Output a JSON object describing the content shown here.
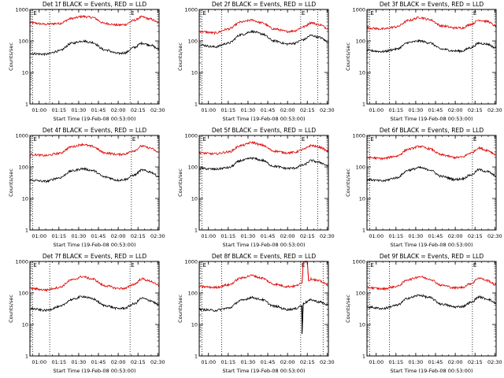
{
  "figure": {
    "y_axis_label": "Counts/sec",
    "x_axis_label": "Start Time (19-Feb-08 00:53:00)"
  },
  "colors": {
    "events": "#000000",
    "lld": "#e00000",
    "background": "#ffffff"
  },
  "chart_data": [
    {
      "type": "line",
      "title": "Det 1f BLACK = Events, RED = LLD",
      "xlabel": "Start Time (19-Feb-08 00:53:00)",
      "ylabel": "Counts/sec",
      "yscale": "log",
      "ylim": [
        1,
        1000
      ],
      "xlim": [
        "00:53",
        "02:31"
      ],
      "xticks": [
        "01:00",
        "01:15",
        "01:30",
        "01:45",
        "02:00",
        "02:15",
        "02:30"
      ],
      "yticks": [
        "1",
        "10",
        "100",
        "1000"
      ],
      "vlines": [
        {
          "x": "00:55",
          "label": "E"
        },
        {
          "x": "01:08",
          "label": ""
        },
        {
          "x": "02:09",
          "label": "E"
        }
      ],
      "series": [
        {
          "name": "LLD",
          "color": "#e00000",
          "x": [
            "00:53",
            "01:05",
            "01:15",
            "01:25",
            "01:33",
            "01:40",
            "01:50",
            "02:00",
            "02:05",
            "02:12",
            "02:18",
            "02:24",
            "02:31"
          ],
          "y": [
            380,
            340,
            360,
            520,
            600,
            560,
            360,
            320,
            330,
            450,
            580,
            500,
            380
          ]
        },
        {
          "name": "Events",
          "color": "#000000",
          "x": [
            "00:53",
            "01:05",
            "01:15",
            "01:25",
            "01:33",
            "01:40",
            "01:50",
            "02:00",
            "02:05",
            "02:12",
            "02:18",
            "02:24",
            "02:31"
          ],
          "y": [
            40,
            38,
            48,
            85,
            100,
            90,
            52,
            40,
            42,
            62,
            85,
            75,
            55
          ]
        }
      ]
    },
    {
      "type": "line",
      "title": "Det 2f BLACK = Events, RED = LLD",
      "xlabel": "Start Time (19-Feb-08 00:53:00)",
      "ylabel": "Counts/sec",
      "yscale": "log",
      "ylim": [
        1,
        1000
      ],
      "xlim": [
        "00:53",
        "02:31"
      ],
      "xticks": [
        "01:00",
        "01:15",
        "01:30",
        "01:45",
        "02:00",
        "02:15",
        "02:30"
      ],
      "yticks": [
        "1",
        "10",
        "100",
        "1000"
      ],
      "vlines": [
        {
          "x": "00:55",
          "label": "E"
        },
        {
          "x": "01:10",
          "label": ""
        },
        {
          "x": "02:10",
          "label": "E"
        },
        {
          "x": "02:23",
          "label": ""
        }
      ],
      "series": [
        {
          "name": "LLD",
          "color": "#e00000",
          "x": [
            "00:53",
            "01:05",
            "01:15",
            "01:25",
            "01:33",
            "01:40",
            "01:50",
            "02:00",
            "02:05",
            "02:12",
            "02:18",
            "02:24",
            "02:31"
          ],
          "y": [
            200,
            180,
            240,
            400,
            460,
            380,
            240,
            200,
            210,
            280,
            380,
            330,
            250
          ]
        },
        {
          "name": "Events",
          "color": "#000000",
          "x": [
            "00:53",
            "01:05",
            "01:15",
            "01:25",
            "01:33",
            "01:40",
            "01:50",
            "02:00",
            "02:05",
            "02:12",
            "02:18",
            "02:24",
            "02:31"
          ],
          "y": [
            75,
            65,
            85,
            160,
            200,
            170,
            100,
            80,
            85,
            110,
            150,
            130,
            95
          ]
        }
      ]
    },
    {
      "type": "line",
      "title": "Det 3f BLACK = Events, RED = LLD",
      "xlabel": "Start Time (19-Feb-08 00:53:00)",
      "ylabel": "Counts/sec",
      "yscale": "log",
      "ylim": [
        1,
        1000
      ],
      "xlim": [
        "00:53",
        "02:31"
      ],
      "xticks": [
        "01:00",
        "01:15",
        "01:30",
        "01:45",
        "02:00",
        "02:15",
        "02:30"
      ],
      "yticks": [
        "1",
        "10",
        "100",
        "1000"
      ],
      "vlines": [
        {
          "x": "00:55",
          "label": "E"
        },
        {
          "x": "01:10",
          "label": ""
        },
        {
          "x": "02:13",
          "label": "E"
        }
      ],
      "series": [
        {
          "name": "LLD",
          "color": "#e00000",
          "x": [
            "00:53",
            "01:05",
            "01:15",
            "01:25",
            "01:33",
            "01:40",
            "01:50",
            "02:00",
            "02:05",
            "02:12",
            "02:18",
            "02:24",
            "02:31"
          ],
          "y": [
            260,
            240,
            280,
            450,
            560,
            480,
            300,
            260,
            260,
            340,
            460,
            420,
            300
          ]
        },
        {
          "name": "Events",
          "color": "#000000",
          "x": [
            "00:53",
            "01:05",
            "01:15",
            "01:25",
            "01:33",
            "01:40",
            "01:50",
            "02:00",
            "02:05",
            "02:12",
            "02:18",
            "02:24",
            "02:31"
          ],
          "y": [
            50,
            46,
            55,
            90,
            100,
            88,
            55,
            48,
            48,
            62,
            85,
            80,
            60
          ]
        }
      ]
    },
    {
      "type": "line",
      "title": "Det 4f BLACK = Events, RED = LLD",
      "xlabel": "Start Time (19-Feb-08 00:53:00)",
      "ylabel": "Counts/sec",
      "yscale": "log",
      "ylim": [
        1,
        1000
      ],
      "xlim": [
        "00:53",
        "02:31"
      ],
      "xticks": [
        "01:00",
        "01:15",
        "01:30",
        "01:45",
        "02:00",
        "02:15",
        "02:30"
      ],
      "yticks": [
        "1",
        "10",
        "100",
        "1000"
      ],
      "vlines": [
        {
          "x": "00:55",
          "label": "E"
        },
        {
          "x": "02:10",
          "label": "E"
        }
      ],
      "series": [
        {
          "name": "LLD",
          "color": "#e00000",
          "x": [
            "00:53",
            "01:05",
            "01:15",
            "01:25",
            "01:33",
            "01:40",
            "01:50",
            "02:00",
            "02:05",
            "02:12",
            "02:18",
            "02:24",
            "02:31"
          ],
          "y": [
            250,
            230,
            270,
            440,
            520,
            450,
            280,
            250,
            260,
            330,
            460,
            400,
            290
          ]
        },
        {
          "name": "Events",
          "color": "#000000",
          "x": [
            "00:53",
            "01:05",
            "01:15",
            "01:25",
            "01:33",
            "01:40",
            "01:50",
            "02:00",
            "02:05",
            "02:12",
            "02:18",
            "02:24",
            "02:31"
          ],
          "y": [
            38,
            35,
            45,
            75,
            88,
            78,
            48,
            38,
            40,
            55,
            80,
            70,
            50
          ]
        }
      ]
    },
    {
      "type": "line",
      "title": "Det 5f BLACK = Events, RED = LLD",
      "xlabel": "Start Time (19-Feb-08 00:53:00)",
      "ylabel": "Counts/sec",
      "yscale": "log",
      "ylim": [
        1,
        1000
      ],
      "xlim": [
        "00:53",
        "02:31"
      ],
      "xticks": [
        "01:00",
        "01:15",
        "01:30",
        "01:45",
        "02:00",
        "02:15",
        "02:30"
      ],
      "yticks": [
        "1",
        "10",
        "100",
        "1000"
      ],
      "vlines": [
        {
          "x": "00:55",
          "label": "E"
        },
        {
          "x": "02:10",
          "label": "E"
        },
        {
          "x": "02:23",
          "label": ""
        }
      ],
      "series": [
        {
          "name": "LLD",
          "color": "#e00000",
          "x": [
            "00:53",
            "01:05",
            "01:15",
            "01:25",
            "01:33",
            "01:40",
            "01:50",
            "02:00",
            "02:05",
            "02:12",
            "02:18",
            "02:24",
            "02:31"
          ],
          "y": [
            280,
            260,
            300,
            480,
            600,
            500,
            320,
            280,
            290,
            360,
            480,
            430,
            320
          ]
        },
        {
          "name": "Events",
          "color": "#000000",
          "x": [
            "00:53",
            "01:05",
            "01:15",
            "01:25",
            "01:33",
            "01:40",
            "01:50",
            "02:00",
            "02:05",
            "02:12",
            "02:18",
            "02:24",
            "02:31"
          ],
          "y": [
            90,
            85,
            95,
            160,
            190,
            165,
            105,
            90,
            92,
            115,
            160,
            140,
            110
          ]
        }
      ]
    },
    {
      "type": "line",
      "title": "Det 6f BLACK = Events, RED = LLD",
      "xlabel": "Start Time (19-Feb-08 00:53:00)",
      "ylabel": "Counts/sec",
      "yscale": "log",
      "ylim": [
        1,
        1000
      ],
      "xlim": [
        "00:53",
        "02:31"
      ],
      "xticks": [
        "01:00",
        "01:15",
        "01:30",
        "01:45",
        "02:00",
        "02:15",
        "02:30"
      ],
      "yticks": [
        "1",
        "10",
        "100",
        "1000"
      ],
      "vlines": [
        {
          "x": "00:55",
          "label": "E"
        },
        {
          "x": "02:13",
          "label": "E"
        }
      ],
      "series": [
        {
          "name": "LLD",
          "color": "#e00000",
          "x": [
            "00:53",
            "01:05",
            "01:15",
            "01:25",
            "01:33",
            "01:40",
            "01:50",
            "02:00",
            "02:05",
            "02:12",
            "02:18",
            "02:24",
            "02:31"
          ],
          "y": [
            200,
            185,
            220,
            370,
            450,
            380,
            240,
            200,
            205,
            280,
            400,
            340,
            250
          ]
        },
        {
          "name": "Events",
          "color": "#000000",
          "x": [
            "00:53",
            "01:05",
            "01:15",
            "01:25",
            "01:33",
            "01:40",
            "01:50",
            "02:00",
            "02:05",
            "02:12",
            "02:18",
            "02:24",
            "02:31"
          ],
          "y": [
            40,
            36,
            45,
            80,
            95,
            82,
            50,
            40,
            42,
            56,
            82,
            72,
            52
          ]
        }
      ]
    },
    {
      "type": "line",
      "title": "Det 7f BLACK = Events, RED = LLD",
      "xlabel": "Start Time (19-Feb-08 00:53:00)",
      "ylabel": "Counts/sec",
      "yscale": "log",
      "ylim": [
        1,
        1000
      ],
      "xlim": [
        "00:53",
        "02:31"
      ],
      "xticks": [
        "01:00",
        "01:15",
        "01:30",
        "01:45",
        "02:00",
        "02:15",
        "02:30"
      ],
      "yticks": [
        "1",
        "10",
        "100",
        "1000"
      ],
      "vlines": [
        {
          "x": "00:55",
          "label": "E"
        },
        {
          "x": "01:08",
          "label": ""
        },
        {
          "x": "02:09",
          "label": "E"
        }
      ],
      "series": [
        {
          "name": "LLD",
          "color": "#e00000",
          "x": [
            "00:53",
            "01:05",
            "01:15",
            "01:25",
            "01:33",
            "01:40",
            "01:50",
            "02:00",
            "02:05",
            "02:12",
            "02:18",
            "02:24",
            "02:31"
          ],
          "y": [
            140,
            125,
            150,
            260,
            330,
            280,
            170,
            140,
            140,
            190,
            280,
            240,
            170
          ]
        },
        {
          "name": "Events",
          "color": "#000000",
          "x": [
            "00:53",
            "01:05",
            "01:15",
            "01:25",
            "01:33",
            "01:40",
            "01:50",
            "02:00",
            "02:05",
            "02:12",
            "02:18",
            "02:24",
            "02:31"
          ],
          "y": [
            32,
            28,
            36,
            62,
            78,
            66,
            40,
            32,
            33,
            45,
            68,
            58,
            42
          ]
        }
      ]
    },
    {
      "type": "line",
      "title": "Det 8f BLACK = Events, RED = LLD",
      "xlabel": "Start Time (19-Feb-08 00:53:00)",
      "ylabel": "Counts/sec",
      "yscale": "log",
      "ylim": [
        1,
        1000
      ],
      "xlim": [
        "00:53",
        "02:31"
      ],
      "xticks": [
        "01:00",
        "01:15",
        "01:30",
        "01:45",
        "02:00",
        "02:15",
        "02:30"
      ],
      "yticks": [
        "1",
        "10",
        "100",
        "1000"
      ],
      "vlines": [
        {
          "x": "00:55",
          "label": "E"
        },
        {
          "x": "01:10",
          "label": ""
        },
        {
          "x": "02:10",
          "label": "E"
        },
        {
          "x": "02:27",
          "label": ""
        }
      ],
      "series": [
        {
          "name": "LLD",
          "color": "#e00000",
          "x": [
            "00:53",
            "01:05",
            "01:15",
            "01:25",
            "01:33",
            "01:40",
            "01:50",
            "02:00",
            "02:05",
            "02:11",
            "02:12",
            "02:13",
            "02:15",
            "02:16",
            "02:18",
            "02:24",
            "02:31"
          ],
          "y": [
            160,
            150,
            180,
            300,
            360,
            300,
            190,
            160,
            165,
            200,
            1000,
            1000,
            1000,
            250,
            280,
            240,
            180
          ]
        },
        {
          "name": "Events",
          "color": "#000000",
          "x": [
            "00:53",
            "01:05",
            "01:15",
            "01:25",
            "01:33",
            "01:40",
            "01:50",
            "02:00",
            "02:05",
            "02:11",
            "02:11",
            "02:12",
            "02:18",
            "02:24",
            "02:31"
          ],
          "y": [
            30,
            28,
            33,
            58,
            72,
            62,
            38,
            30,
            31,
            40,
            5,
            48,
            60,
            52,
            42
          ]
        }
      ]
    },
    {
      "type": "line",
      "title": "Det 9f BLACK = Events, RED = LLD",
      "xlabel": "Start Time (19-Feb-08 00:53:00)",
      "ylabel": "Counts/sec",
      "yscale": "log",
      "ylim": [
        1,
        1000
      ],
      "xlim": [
        "00:53",
        "02:31"
      ],
      "xticks": [
        "01:00",
        "01:15",
        "01:30",
        "01:45",
        "02:00",
        "02:15",
        "02:30"
      ],
      "yticks": [
        "1",
        "10",
        "100",
        "1000"
      ],
      "vlines": [
        {
          "x": "00:55",
          "label": "E"
        },
        {
          "x": "01:10",
          "label": ""
        },
        {
          "x": "02:13",
          "label": "E"
        }
      ],
      "series": [
        {
          "name": "LLD",
          "color": "#e00000",
          "x": [
            "00:53",
            "01:05",
            "01:15",
            "01:25",
            "01:33",
            "01:40",
            "01:50",
            "02:00",
            "02:05",
            "02:12",
            "02:18",
            "02:24",
            "02:31"
          ],
          "y": [
            150,
            135,
            160,
            270,
            330,
            280,
            175,
            145,
            150,
            200,
            300,
            250,
            180
          ]
        },
        {
          "name": "Events",
          "color": "#000000",
          "x": [
            "00:53",
            "01:05",
            "01:15",
            "01:25",
            "01:33",
            "01:40",
            "01:50",
            "02:00",
            "02:05",
            "02:12",
            "02:18",
            "02:24",
            "02:31"
          ],
          "y": [
            36,
            32,
            40,
            70,
            85,
            72,
            44,
            36,
            37,
            50,
            75,
            65,
            48
          ]
        }
      ]
    }
  ]
}
